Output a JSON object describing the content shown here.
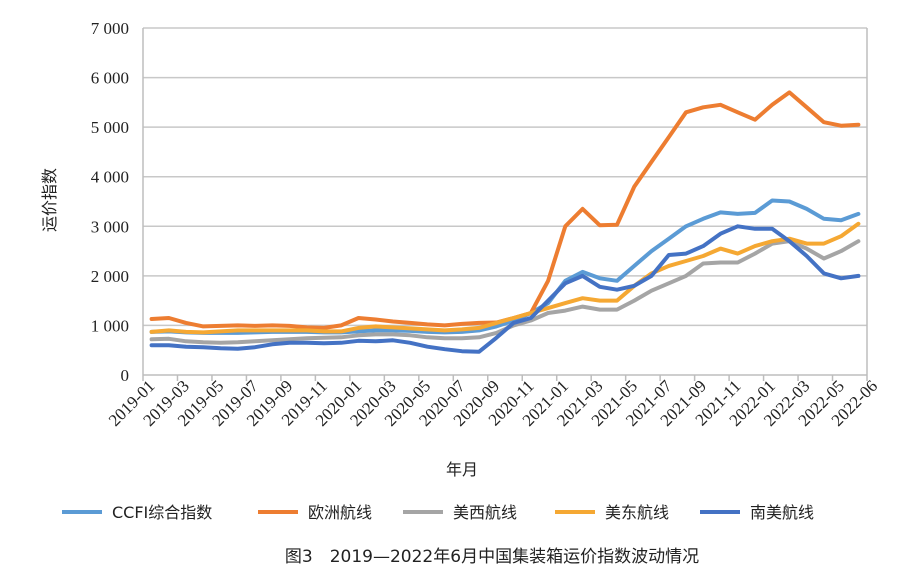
{
  "chart_data": {
    "type": "line",
    "title": "",
    "caption": "图3　2019—2022年6月中国集装箱运价指数波动情况",
    "xlabel": "年月",
    "ylabel": "运价指数",
    "ylim": [
      0,
      7000
    ],
    "yticks": [
      0,
      1000,
      2000,
      3000,
      4000,
      5000,
      6000,
      7000
    ],
    "ytick_labels": [
      "0",
      "1 000",
      "2 000",
      "3 000",
      "4 000",
      "5 000",
      "6 000",
      "7 000"
    ],
    "grid": "horizontal",
    "legend_position": "bottom",
    "categories": [
      "2019-01",
      "2019-02",
      "2019-03",
      "2019-04",
      "2019-05",
      "2019-06",
      "2019-07",
      "2019-08",
      "2019-09",
      "2019-10",
      "2019-11",
      "2019-12",
      "2020-01",
      "2020-02",
      "2020-03",
      "2020-04",
      "2020-05",
      "2020-06",
      "2020-07",
      "2020-08",
      "2020-09",
      "2020-10",
      "2020-11",
      "2020-12",
      "2021-01",
      "2021-02",
      "2021-03",
      "2021-04",
      "2021-05",
      "2021-06",
      "2021-07",
      "2021-08",
      "2021-09",
      "2021-10",
      "2021-11",
      "2021-12",
      "2022-01",
      "2022-02",
      "2022-03",
      "2022-04",
      "2022-05",
      "2022-06"
    ],
    "xtick_labels": [
      "2019-01",
      "2019-03",
      "2019-05",
      "2019-07",
      "2019-09",
      "2019-11",
      "2020-01",
      "2020-03",
      "2020-05",
      "2020-07",
      "2020-09",
      "2020-11",
      "2021-01",
      "2021-03",
      "2021-05",
      "2021-07",
      "2021-09",
      "2021-11",
      "2022-01",
      "2022-03",
      "2022-05",
      "2022-06"
    ],
    "series": [
      {
        "name": "CCFI综合指数",
        "color": "#5b9bd5",
        "values": [
          870,
          880,
          860,
          850,
          850,
          850,
          860,
          870,
          870,
          870,
          860,
          860,
          880,
          900,
          900,
          890,
          870,
          860,
          870,
          900,
          980,
          1100,
          1250,
          1450,
          1900,
          2080,
          1950,
          1900,
          2200,
          2500,
          2750,
          3000,
          3150,
          3280,
          3250,
          3270,
          3520,
          3500,
          3350,
          3150,
          3120,
          3250
        ]
      },
      {
        "name": "欧洲航线",
        "color": "#ed7d31",
        "values": [
          1130,
          1150,
          1050,
          980,
          990,
          1000,
          990,
          1000,
          990,
          960,
          950,
          1000,
          1150,
          1120,
          1080,
          1050,
          1020,
          1000,
          1030,
          1050,
          1060,
          1150,
          1250,
          1900,
          3000,
          3350,
          3020,
          3030,
          3800,
          4300,
          4800,
          5300,
          5400,
          5450,
          5300,
          5150,
          5450,
          5700,
          5400,
          5100,
          5030,
          5050
        ]
      },
      {
        "name": "美西航线",
        "color": "#a5a5a5",
        "values": [
          720,
          730,
          680,
          660,
          650,
          660,
          680,
          700,
          720,
          740,
          750,
          760,
          800,
          820,
          820,
          800,
          760,
          740,
          740,
          760,
          850,
          1000,
          1100,
          1250,
          1300,
          1380,
          1320,
          1320,
          1500,
          1700,
          1850,
          2000,
          2250,
          2270,
          2270,
          2450,
          2650,
          2700,
          2550,
          2350,
          2500,
          2700
        ]
      },
      {
        "name": "美东航线",
        "color": "#f5a833",
        "values": [
          870,
          900,
          870,
          860,
          880,
          900,
          900,
          900,
          900,
          900,
          880,
          880,
          950,
          980,
          960,
          940,
          920,
          900,
          920,
          950,
          1050,
          1150,
          1250,
          1350,
          1450,
          1550,
          1500,
          1500,
          1800,
          2050,
          2200,
          2300,
          2400,
          2550,
          2450,
          2600,
          2700,
          2750,
          2650,
          2650,
          2800,
          3050
        ]
      },
      {
        "name": "南美航线",
        "color": "#4472c4",
        "values": [
          600,
          600,
          570,
          560,
          540,
          530,
          560,
          620,
          650,
          650,
          640,
          650,
          690,
          680,
          700,
          650,
          570,
          520,
          480,
          470,
          750,
          1050,
          1150,
          1500,
          1850,
          2000,
          1780,
          1720,
          1800,
          2000,
          2420,
          2450,
          2600,
          2850,
          3000,
          2950,
          2950,
          2700,
          2400,
          2050,
          1950,
          2000
        ]
      }
    ]
  }
}
